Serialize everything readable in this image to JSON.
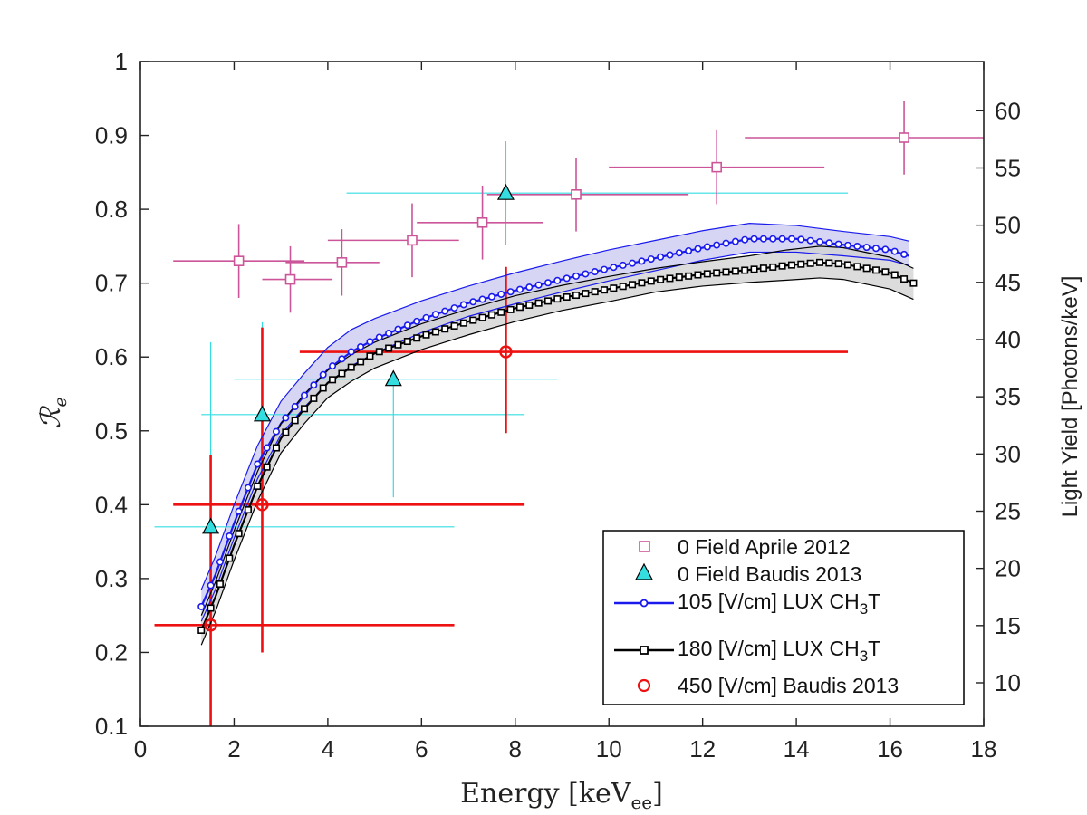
{
  "chart_data": {
    "type": "scatter",
    "xlabel": "Energy [keV",
    "xlabel_sub": "ee",
    "xlabel_close": "]",
    "ylabel": "ℛ",
    "ylabel_sub": "e",
    "y2label": "Light Yield [Photons/keV]",
    "xlim": [
      0,
      18
    ],
    "ylim": [
      0.1,
      1.0
    ],
    "y2lim": [
      6.2,
      64.3
    ],
    "grid": false,
    "legend_position": "bottom-right",
    "x_ticks": [
      "0",
      "2",
      "4",
      "6",
      "8",
      "10",
      "12",
      "14",
      "16",
      "18"
    ],
    "y_ticks": [
      "0.1",
      "0.2",
      "0.3",
      "0.4",
      "0.5",
      "0.6",
      "0.7",
      "0.8",
      "0.9",
      "1"
    ],
    "y2_ticks": [
      "10",
      "15",
      "20",
      "25",
      "30",
      "35",
      "40",
      "45",
      "50",
      "55",
      "60"
    ],
    "series": [
      {
        "name": "0 Field Aprile 2012",
        "marker": "square",
        "color": "#cc5599",
        "x": [
          2.1,
          3.2,
          4.3,
          5.8,
          7.3,
          9.3,
          12.3,
          16.3
        ],
        "y": [
          0.73,
          0.705,
          0.728,
          0.758,
          0.782,
          0.82,
          0.857,
          0.897
        ],
        "x_err": [
          [
            1.4,
            1.4
          ],
          [
            0.6,
            0.9
          ],
          [
            1.2,
            0.8
          ],
          [
            1.8,
            1.0
          ],
          [
            1.4,
            1.3
          ],
          [
            1.9,
            2.4
          ],
          [
            2.3,
            2.3
          ],
          [
            3.4,
            1.9
          ]
        ],
        "y_err": [
          [
            0.05,
            0.05
          ],
          [
            0.045,
            0.045
          ],
          [
            0.045,
            0.045
          ],
          [
            0.05,
            0.05
          ],
          [
            0.05,
            0.05
          ],
          [
            0.05,
            0.05
          ],
          [
            0.05,
            0.05
          ],
          [
            0.05,
            0.05
          ]
        ]
      },
      {
        "name": "0 Field Baudis 2013",
        "marker": "triangle",
        "color": "#33dde0",
        "x": [
          1.5,
          2.6,
          5.4,
          7.8
        ],
        "y": [
          0.37,
          0.522,
          0.57,
          0.822
        ],
        "x_err": [
          [
            1.2,
            5.2
          ],
          [
            1.3,
            5.6
          ],
          [
            3.4,
            3.5
          ],
          [
            3.4,
            7.3
          ]
        ],
        "y_err": [
          [
            0.27,
            0.25
          ],
          [
            0.13,
            0.125
          ],
          [
            0.16,
            0.0
          ],
          [
            0.07,
            0.07
          ]
        ]
      },
      {
        "name": "105 [V/cm] LUX CH",
        "name_sub": "3",
        "name_tail": "T",
        "marker": "circle-line",
        "color": "#1a1aee",
        "band_color": "#c8c8f0",
        "x": [
          1.3,
          1.6,
          2.0,
          2.5,
          3.0,
          3.5,
          4.0,
          4.5,
          5.0,
          6.0,
          7.0,
          8.0,
          9.0,
          10.0,
          11.0,
          12.0,
          13.0,
          14.0,
          15.0,
          16.0,
          16.4
        ],
        "y": [
          0.262,
          0.305,
          0.375,
          0.455,
          0.51,
          0.548,
          0.583,
          0.607,
          0.624,
          0.651,
          0.673,
          0.69,
          0.705,
          0.72,
          0.734,
          0.748,
          0.76,
          0.76,
          0.752,
          0.745,
          0.737
        ],
        "upper": [
          0.285,
          0.33,
          0.4,
          0.48,
          0.54,
          0.578,
          0.613,
          0.637,
          0.652,
          0.676,
          0.696,
          0.714,
          0.73,
          0.745,
          0.758,
          0.771,
          0.781,
          0.778,
          0.77,
          0.763,
          0.757
        ],
        "lower": [
          0.242,
          0.285,
          0.355,
          0.435,
          0.495,
          0.532,
          0.565,
          0.588,
          0.605,
          0.633,
          0.655,
          0.672,
          0.688,
          0.703,
          0.717,
          0.731,
          0.742,
          0.742,
          0.737,
          0.731,
          0.724
        ]
      },
      {
        "name": "180 [V/cm] LUX CH",
        "name_sub": "3",
        "name_tail": "T",
        "marker": "square-line",
        "color": "#000000",
        "band_color": "#d0d0d0",
        "x": [
          1.3,
          1.6,
          2.0,
          2.5,
          3.0,
          3.5,
          4.0,
          4.5,
          5.0,
          6.0,
          7.0,
          8.0,
          9.0,
          10.0,
          11.0,
          12.0,
          13.0,
          13.8,
          14.5,
          15.0,
          16.0,
          16.5
        ],
        "y": [
          0.23,
          0.275,
          0.345,
          0.425,
          0.49,
          0.53,
          0.565,
          0.586,
          0.605,
          0.628,
          0.648,
          0.666,
          0.68,
          0.692,
          0.704,
          0.712,
          0.718,
          0.724,
          0.728,
          0.726,
          0.714,
          0.7
        ],
        "upper": [
          0.25,
          0.295,
          0.365,
          0.445,
          0.51,
          0.55,
          0.582,
          0.603,
          0.62,
          0.645,
          0.665,
          0.683,
          0.697,
          0.709,
          0.72,
          0.729,
          0.737,
          0.745,
          0.75,
          0.748,
          0.735,
          0.72
        ],
        "lower": [
          0.21,
          0.255,
          0.325,
          0.405,
          0.47,
          0.51,
          0.545,
          0.567,
          0.585,
          0.61,
          0.63,
          0.648,
          0.663,
          0.675,
          0.688,
          0.696,
          0.701,
          0.704,
          0.707,
          0.705,
          0.692,
          0.678
        ]
      },
      {
        "name": "450 [V/cm] Baudis 2013",
        "marker": "circle",
        "color": "#ee1111",
        "x": [
          1.5,
          2.6,
          7.8
        ],
        "y": [
          0.237,
          0.4,
          0.607
        ],
        "x_err": [
          [
            1.2,
            5.2
          ],
          [
            1.9,
            5.6
          ],
          [
            4.4,
            7.3
          ]
        ],
        "y_err": [
          [
            0.14,
            0.23
          ],
          [
            0.2,
            0.24
          ],
          [
            0.11,
            0.115
          ]
        ]
      }
    ]
  }
}
